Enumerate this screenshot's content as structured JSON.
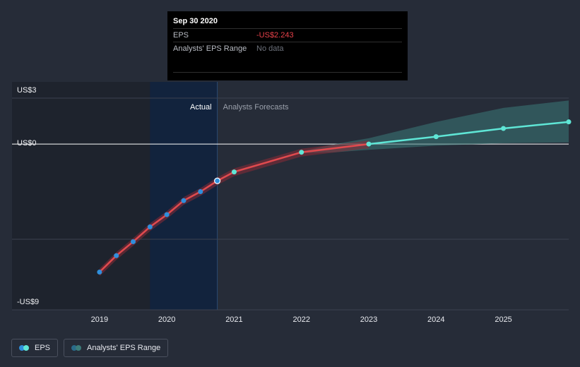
{
  "tooltip": {
    "date": "Sep 30 2020",
    "rows": [
      {
        "label": "EPS",
        "value": "-US$2.243"
      },
      {
        "label": "Analysts' EPS Range",
        "value": "No data"
      }
    ]
  },
  "regions": {
    "actual": "Actual",
    "forecast": "Analysts Forecasts"
  },
  "legend": {
    "eps": "EPS",
    "range": "Analysts' EPS Range"
  },
  "colors": {
    "actual_line": "#e04a4e",
    "actual_point": "#2f8fdc",
    "forecast_line": "#5fe6d6",
    "range_fill": "#3a7a78",
    "highlight": "#12233d",
    "background": "#262c38"
  },
  "chart_data": {
    "type": "line",
    "y_ticks": [
      {
        "value": 3,
        "label": "US$3"
      },
      {
        "value": 0,
        "label": "US$0"
      },
      {
        "value": -9,
        "label": "-US$9"
      }
    ],
    "x_ticks": [
      {
        "value": 2019,
        "label": "2019"
      },
      {
        "value": 2020,
        "label": "2020"
      },
      {
        "value": 2021,
        "label": "2021"
      },
      {
        "value": 2022,
        "label": "2022"
      },
      {
        "value": 2023,
        "label": "2023"
      },
      {
        "value": 2024,
        "label": "2024"
      },
      {
        "value": 2025,
        "label": "2025"
      }
    ],
    "xlim": [
      2017.7,
      2025.97
    ],
    "ylim": [
      -9.5,
      3.4
    ],
    "actual_until": 2020.75,
    "highlight_from": 2019.75,
    "series": [
      {
        "name": "EPS",
        "role": "actual",
        "points": [
          {
            "x": 2019.0,
            "y": -7.8
          },
          {
            "x": 2019.25,
            "y": -6.8
          },
          {
            "x": 2019.5,
            "y": -5.95
          },
          {
            "x": 2019.75,
            "y": -5.05
          },
          {
            "x": 2020.0,
            "y": -4.3
          },
          {
            "x": 2020.25,
            "y": -3.45
          },
          {
            "x": 2020.5,
            "y": -2.9
          },
          {
            "x": 2020.75,
            "y": -2.243
          }
        ]
      },
      {
        "name": "EPS",
        "role": "forecast",
        "points": [
          {
            "x": 2021.0,
            "y": -1.7
          },
          {
            "x": 2022.0,
            "y": -0.5
          },
          {
            "x": 2023.0,
            "y": 0.0
          },
          {
            "x": 2024.0,
            "y": 0.45
          },
          {
            "x": 2025.0,
            "y": 0.95
          },
          {
            "x": 2025.97,
            "y": 1.35
          }
        ]
      }
    ],
    "range_band": [
      {
        "x": 2022.0,
        "low": -0.55,
        "high": -0.45
      },
      {
        "x": 2022.5,
        "low": -0.5,
        "high": 0.0
      },
      {
        "x": 2023.0,
        "low": -0.35,
        "high": 0.35
      },
      {
        "x": 2024.0,
        "low": -0.1,
        "high": 1.35
      },
      {
        "x": 2025.0,
        "low": 0.05,
        "high": 2.2
      },
      {
        "x": 2025.97,
        "low": 0.1,
        "high": 2.65
      }
    ]
  }
}
